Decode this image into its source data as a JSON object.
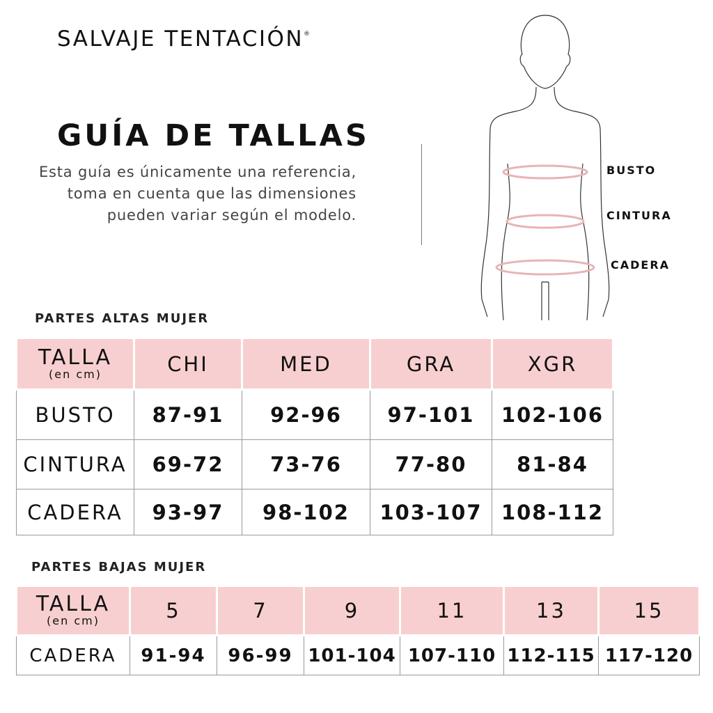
{
  "brand": {
    "name": "SALVAJE TENTACIÓN",
    "mark": "®"
  },
  "title": "GUÍA DE TALLAS",
  "description": "Esta guía es únicamente una referencia, toma en cuenta que las dimensiones pueden variar según el modelo.",
  "figure": {
    "labels": [
      "BUSTO",
      "CINTURA",
      "CADERA"
    ],
    "measure_color": "#e8b4b4"
  },
  "colors": {
    "header_bg": "#f8cfd0",
    "border": "#999999"
  },
  "upper_table": {
    "section_title": "PARTES ALTAS MUJER",
    "header_label": "TALLA",
    "header_sub": "(en cm)",
    "columns": [
      "CHI",
      "MED",
      "GRA",
      "XGR"
    ],
    "rows": [
      {
        "label": "BUSTO",
        "values": [
          "87-91",
          "92-96",
          "97-101",
          "102-106"
        ]
      },
      {
        "label": "CINTURA",
        "values": [
          "69-72",
          "73-76",
          "77-80",
          "81-84"
        ]
      },
      {
        "label": "CADERA",
        "values": [
          "93-97",
          "98-102",
          "103-107",
          "108-112"
        ]
      }
    ]
  },
  "lower_table": {
    "section_title": "PARTES BAJAS MUJER",
    "header_label": "TALLA",
    "header_sub": "(en cm)",
    "columns": [
      "5",
      "7",
      "9",
      "11",
      "13",
      "15"
    ],
    "rows": [
      {
        "label": "CADERA",
        "values": [
          "91-94",
          "96-99",
          "101-104",
          "107-110",
          "112-115",
          "117-120"
        ]
      }
    ]
  }
}
